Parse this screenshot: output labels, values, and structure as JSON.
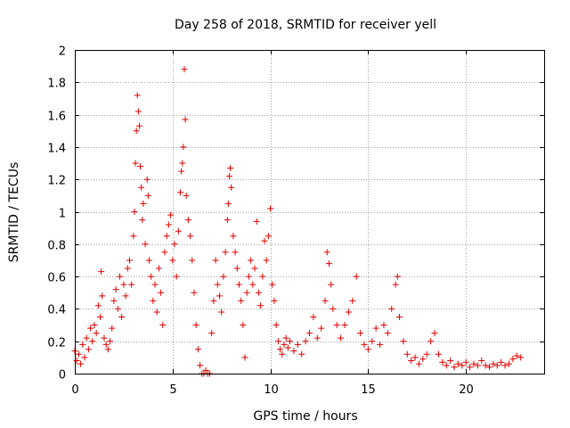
{
  "chart_data": {
    "type": "scatter",
    "title": "Day 258 of 2018, SRMTID for receiver yell",
    "xlabel": "GPS time / hours",
    "ylabel": "SRMTID / TECUs",
    "xlim": [
      0,
      24
    ],
    "ylim": [
      0,
      2
    ],
    "xticks": [
      0,
      5,
      10,
      15,
      20
    ],
    "xtick_labels": [
      "0",
      "5",
      "10",
      "15",
      "20"
    ],
    "yticks": [
      0,
      0.2,
      0.4,
      0.6,
      0.8,
      1,
      1.2,
      1.4,
      1.6,
      1.8,
      2
    ],
    "ytick_labels": [
      "0",
      "0.2",
      "0.4",
      "0.6",
      "0.8",
      "1",
      "1.2",
      "1.4",
      "1.6",
      "1.8",
      "2"
    ],
    "grid": true,
    "marker": "+",
    "color": "#e00000",
    "series": [
      {
        "name": "SRMTID",
        "points": [
          [
            0.0,
            0.14
          ],
          [
            0.1,
            0.08
          ],
          [
            0.2,
            0.12
          ],
          [
            0.3,
            0.06
          ],
          [
            0.4,
            0.18
          ],
          [
            0.5,
            0.1
          ],
          [
            0.6,
            0.22
          ],
          [
            0.7,
            0.15
          ],
          [
            0.8,
            0.28
          ],
          [
            0.9,
            0.2
          ],
          [
            1.0,
            0.3
          ],
          [
            1.1,
            0.25
          ],
          [
            1.2,
            0.42
          ],
          [
            1.3,
            0.35
          ],
          [
            1.35,
            0.63
          ],
          [
            1.4,
            0.48
          ],
          [
            1.5,
            0.22
          ],
          [
            1.6,
            0.18
          ],
          [
            1.7,
            0.15
          ],
          [
            1.8,
            0.2
          ],
          [
            1.9,
            0.28
          ],
          [
            2.0,
            0.45
          ],
          [
            2.1,
            0.52
          ],
          [
            2.2,
            0.4
          ],
          [
            2.3,
            0.6
          ],
          [
            2.4,
            0.35
          ],
          [
            2.5,
            0.55
          ],
          [
            2.6,
            0.48
          ],
          [
            2.7,
            0.65
          ],
          [
            2.8,
            0.7
          ],
          [
            2.9,
            0.55
          ],
          [
            3.0,
            0.85
          ],
          [
            3.05,
            1.0
          ],
          [
            3.1,
            1.3
          ],
          [
            3.15,
            1.5
          ],
          [
            3.2,
            1.72
          ],
          [
            3.25,
            1.62
          ],
          [
            3.3,
            1.53
          ],
          [
            3.35,
            1.28
          ],
          [
            3.4,
            1.15
          ],
          [
            3.45,
            0.95
          ],
          [
            3.5,
            1.05
          ],
          [
            3.6,
            0.8
          ],
          [
            3.7,
            1.2
          ],
          [
            3.75,
            1.1
          ],
          [
            3.8,
            0.7
          ],
          [
            3.9,
            0.6
          ],
          [
            4.0,
            0.45
          ],
          [
            4.1,
            0.55
          ],
          [
            4.2,
            0.38
          ],
          [
            4.3,
            0.65
          ],
          [
            4.4,
            0.5
          ],
          [
            4.5,
            0.3
          ],
          [
            4.6,
            0.75
          ],
          [
            4.7,
            0.85
          ],
          [
            4.8,
            0.92
          ],
          [
            4.9,
            0.98
          ],
          [
            5.0,
            0.7
          ],
          [
            5.1,
            0.8
          ],
          [
            5.2,
            0.6
          ],
          [
            5.3,
            0.88
          ],
          [
            5.4,
            1.12
          ],
          [
            5.45,
            1.25
          ],
          [
            5.5,
            1.3
          ],
          [
            5.55,
            1.4
          ],
          [
            5.6,
            1.88
          ],
          [
            5.65,
            1.57
          ],
          [
            5.7,
            1.1
          ],
          [
            5.8,
            0.95
          ],
          [
            5.9,
            0.85
          ],
          [
            6.0,
            0.7
          ],
          [
            6.1,
            0.5
          ],
          [
            6.2,
            0.3
          ],
          [
            6.3,
            0.15
          ],
          [
            6.4,
            0.05
          ],
          [
            6.5,
            0.0
          ],
          [
            6.6,
            0.0
          ],
          [
            6.7,
            0.02
          ],
          [
            6.8,
            0.0
          ],
          [
            6.9,
            0.0
          ],
          [
            7.0,
            0.25
          ],
          [
            7.1,
            0.45
          ],
          [
            7.2,
            0.7
          ],
          [
            7.3,
            0.55
          ],
          [
            7.4,
            0.48
          ],
          [
            7.5,
            0.38
          ],
          [
            7.6,
            0.6
          ],
          [
            7.7,
            0.75
          ],
          [
            7.8,
            0.95
          ],
          [
            7.85,
            1.05
          ],
          [
            7.9,
            1.22
          ],
          [
            7.95,
            1.27
          ],
          [
            8.0,
            1.15
          ],
          [
            8.1,
            0.85
          ],
          [
            8.2,
            0.75
          ],
          [
            8.3,
            0.65
          ],
          [
            8.4,
            0.55
          ],
          [
            8.5,
            0.45
          ],
          [
            8.6,
            0.3
          ],
          [
            8.7,
            0.1
          ],
          [
            8.8,
            0.5
          ],
          [
            8.9,
            0.6
          ],
          [
            9.0,
            0.7
          ],
          [
            9.1,
            0.55
          ],
          [
            9.2,
            0.65
          ],
          [
            9.3,
            0.94
          ],
          [
            9.4,
            0.5
          ],
          [
            9.5,
            0.42
          ],
          [
            9.6,
            0.6
          ],
          [
            9.7,
            0.82
          ],
          [
            9.8,
            0.7
          ],
          [
            9.9,
            0.85
          ],
          [
            10.0,
            1.02
          ],
          [
            10.1,
            0.55
          ],
          [
            10.2,
            0.45
          ],
          [
            10.3,
            0.3
          ],
          [
            10.4,
            0.2
          ],
          [
            10.5,
            0.15
          ],
          [
            10.6,
            0.12
          ],
          [
            10.7,
            0.18
          ],
          [
            10.8,
            0.22
          ],
          [
            10.9,
            0.16
          ],
          [
            11.0,
            0.2
          ],
          [
            11.2,
            0.14
          ],
          [
            11.4,
            0.18
          ],
          [
            11.6,
            0.12
          ],
          [
            11.8,
            0.2
          ],
          [
            12.0,
            0.25
          ],
          [
            12.2,
            0.35
          ],
          [
            12.4,
            0.22
          ],
          [
            12.6,
            0.28
          ],
          [
            12.8,
            0.45
          ],
          [
            12.9,
            0.75
          ],
          [
            13.0,
            0.68
          ],
          [
            13.1,
            0.55
          ],
          [
            13.2,
            0.4
          ],
          [
            13.4,
            0.3
          ],
          [
            13.6,
            0.22
          ],
          [
            13.8,
            0.3
          ],
          [
            14.0,
            0.38
          ],
          [
            14.2,
            0.45
          ],
          [
            14.4,
            0.6
          ],
          [
            14.6,
            0.25
          ],
          [
            14.8,
            0.18
          ],
          [
            15.0,
            0.15
          ],
          [
            15.2,
            0.2
          ],
          [
            15.4,
            0.28
          ],
          [
            15.6,
            0.18
          ],
          [
            15.8,
            0.3
          ],
          [
            16.0,
            0.25
          ],
          [
            16.2,
            0.4
          ],
          [
            16.4,
            0.55
          ],
          [
            16.5,
            0.6
          ],
          [
            16.6,
            0.35
          ],
          [
            16.8,
            0.2
          ],
          [
            17.0,
            0.12
          ],
          [
            17.2,
            0.08
          ],
          [
            17.4,
            0.1
          ],
          [
            17.6,
            0.06
          ],
          [
            17.8,
            0.09
          ],
          [
            18.0,
            0.12
          ],
          [
            18.2,
            0.2
          ],
          [
            18.4,
            0.25
          ],
          [
            18.6,
            0.12
          ],
          [
            18.8,
            0.07
          ],
          [
            19.0,
            0.05
          ],
          [
            19.2,
            0.08
          ],
          [
            19.4,
            0.04
          ],
          [
            19.6,
            0.06
          ],
          [
            19.8,
            0.05
          ],
          [
            20.0,
            0.07
          ],
          [
            20.2,
            0.04
          ],
          [
            20.4,
            0.06
          ],
          [
            20.6,
            0.05
          ],
          [
            20.8,
            0.08
          ],
          [
            21.0,
            0.05
          ],
          [
            21.2,
            0.04
          ],
          [
            21.4,
            0.06
          ],
          [
            21.6,
            0.05
          ],
          [
            21.8,
            0.07
          ],
          [
            22.0,
            0.05
          ],
          [
            22.2,
            0.06
          ],
          [
            22.4,
            0.09
          ],
          [
            22.6,
            0.11
          ],
          [
            22.8,
            0.1
          ]
        ]
      }
    ]
  }
}
